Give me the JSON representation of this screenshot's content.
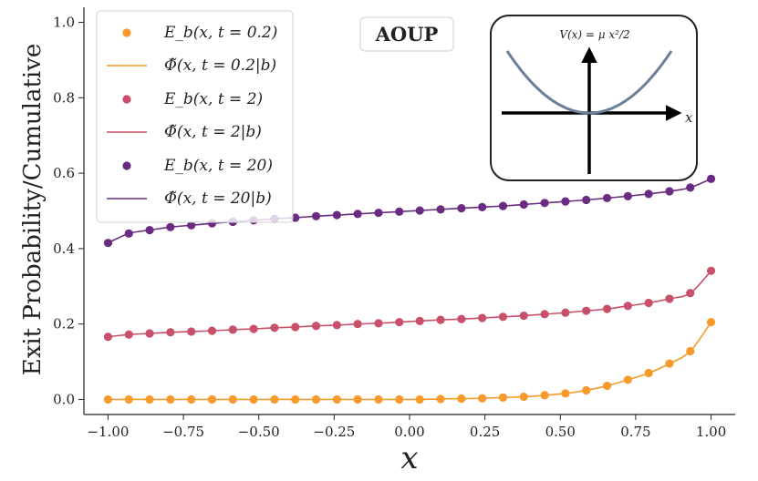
{
  "chart_data": {
    "type": "line",
    "title": "",
    "badge": "AOUP",
    "xlabel": "x",
    "ylabel": "Exit Probability/Cumulative",
    "xlim": [
      -1.08,
      1.08
    ],
    "ylim": [
      -0.04,
      1.04
    ],
    "xticks": [
      -1.0,
      -0.75,
      -0.5,
      -0.25,
      0.0,
      0.25,
      0.5,
      0.75,
      1.0
    ],
    "xtick_labels": [
      "−1.00",
      "−0.75",
      "−0.50",
      "−0.25",
      "0.00",
      "0.25",
      "0.50",
      "0.75",
      "1.00"
    ],
    "yticks": [
      0.0,
      0.2,
      0.4,
      0.6,
      0.8,
      1.0
    ],
    "ytick_labels": [
      "0.0",
      "0.2",
      "0.4",
      "0.6",
      "0.8",
      "1.0"
    ],
    "legend_position": "upper-left",
    "series": [
      {
        "name": "E_b(x, t = 0.2)",
        "legend_label": "E_b(x, t = 0.2)",
        "line_name": "Φ̃(x, t = 0.2|b)",
        "line_legend_label": "Φ̃(x, t = 0.2|b)",
        "color": "#f79a2c",
        "x": [
          -1.0,
          -0.931,
          -0.862,
          -0.793,
          -0.724,
          -0.655,
          -0.586,
          -0.517,
          -0.448,
          -0.379,
          -0.31,
          -0.241,
          -0.172,
          -0.103,
          -0.034,
          0.034,
          0.103,
          0.172,
          0.241,
          0.31,
          0.379,
          0.448,
          0.517,
          0.586,
          0.655,
          0.724,
          0.793,
          0.862,
          0.931,
          1.0
        ],
        "values": [
          0.0,
          0.0,
          0.0,
          0.0,
          0.0,
          0.0,
          0.0,
          0.0,
          0.0,
          0.0,
          0.0,
          0.0,
          0.0,
          0.0,
          0.0,
          0.0,
          0.001,
          0.002,
          0.003,
          0.005,
          0.007,
          0.011,
          0.016,
          0.024,
          0.036,
          0.052,
          0.07,
          0.095,
          0.128,
          0.205
        ]
      },
      {
        "name": "E_b(x, t = 2)",
        "legend_label": "E_b(x, t = 2)",
        "line_name": "Φ̃(x, t = 2|b)",
        "line_legend_label": "Φ̃(x, t = 2|b)",
        "color": "#c8506a",
        "x": [
          -1.0,
          -0.931,
          -0.862,
          -0.793,
          -0.724,
          -0.655,
          -0.586,
          -0.517,
          -0.448,
          -0.379,
          -0.31,
          -0.241,
          -0.172,
          -0.103,
          -0.034,
          0.034,
          0.103,
          0.172,
          0.241,
          0.31,
          0.379,
          0.448,
          0.517,
          0.586,
          0.655,
          0.724,
          0.793,
          0.862,
          0.931,
          1.0
        ],
        "values": [
          0.166,
          0.172,
          0.175,
          0.178,
          0.18,
          0.182,
          0.185,
          0.187,
          0.19,
          0.192,
          0.195,
          0.197,
          0.2,
          0.202,
          0.205,
          0.208,
          0.211,
          0.213,
          0.216,
          0.219,
          0.222,
          0.226,
          0.23,
          0.235,
          0.24,
          0.248,
          0.256,
          0.267,
          0.282,
          0.341
        ]
      },
      {
        "name": "E_b(x, t = 20)",
        "legend_label": "E_b(x, t = 20)",
        "line_name": "Φ̃(x, t = 20|b)",
        "line_legend_label": "Φ̃(x, t = 20|b)",
        "color": "#6a2c80",
        "x": [
          -1.0,
          -0.931,
          -0.862,
          -0.793,
          -0.724,
          -0.655,
          -0.586,
          -0.517,
          -0.448,
          -0.379,
          -0.31,
          -0.241,
          -0.172,
          -0.103,
          -0.034,
          0.034,
          0.103,
          0.172,
          0.241,
          0.31,
          0.379,
          0.448,
          0.517,
          0.586,
          0.655,
          0.724,
          0.793,
          0.862,
          0.931,
          1.0
        ],
        "values": [
          0.415,
          0.44,
          0.449,
          0.457,
          0.462,
          0.467,
          0.471,
          0.475,
          0.479,
          0.482,
          0.486,
          0.489,
          0.492,
          0.495,
          0.498,
          0.501,
          0.504,
          0.507,
          0.51,
          0.513,
          0.517,
          0.521,
          0.525,
          0.529,
          0.534,
          0.539,
          0.545,
          0.552,
          0.562,
          0.585
        ]
      }
    ],
    "inset": {
      "title": "V(x) = μ x²/2",
      "axis_label": "x",
      "curve_color": "#6b7f99"
    }
  }
}
